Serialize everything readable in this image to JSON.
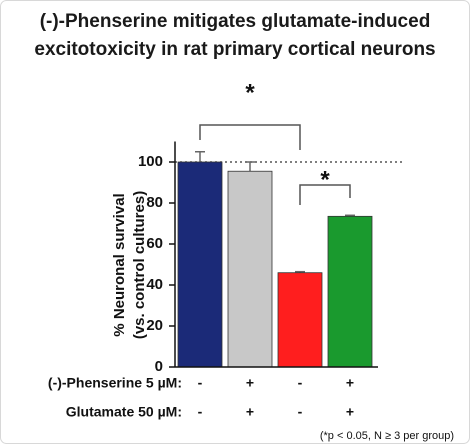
{
  "chart_data": {
    "type": "bar",
    "title": [
      "(-)-Phenserine mitigates glutamate-induced",
      "excitotoxicity in rat primary cortical neurons"
    ],
    "ylabel": [
      "% Neuronal survival",
      "(vs. control cultures)"
    ],
    "values": [
      100,
      95.5,
      46,
      73.5
    ],
    "errors": [
      5,
      4.5,
      0.5,
      0.5
    ],
    "colors": [
      "#1b2a78",
      "#c8c8c8",
      "#ff1e1e",
      "#1a9a2e"
    ],
    "ylim": [
      0,
      110
    ],
    "yticks": [
      0,
      20,
      40,
      60,
      80,
      100
    ],
    "reference_line": 100,
    "annotations": [
      {
        "text": "*",
        "from": 0,
        "to": 2
      },
      {
        "text": "*",
        "from": 2,
        "to": 3
      }
    ],
    "treatments": [
      {
        "label": "(-)-Phenserine 5 µM:",
        "values": [
          "-",
          "+",
          "-",
          "+"
        ]
      },
      {
        "label": "Glutamate 50 µM:",
        "values": [
          "-",
          "+",
          "-",
          "+"
        ]
      }
    ],
    "footnote": "(*p < 0.05, N ≥ 3 per group)"
  }
}
